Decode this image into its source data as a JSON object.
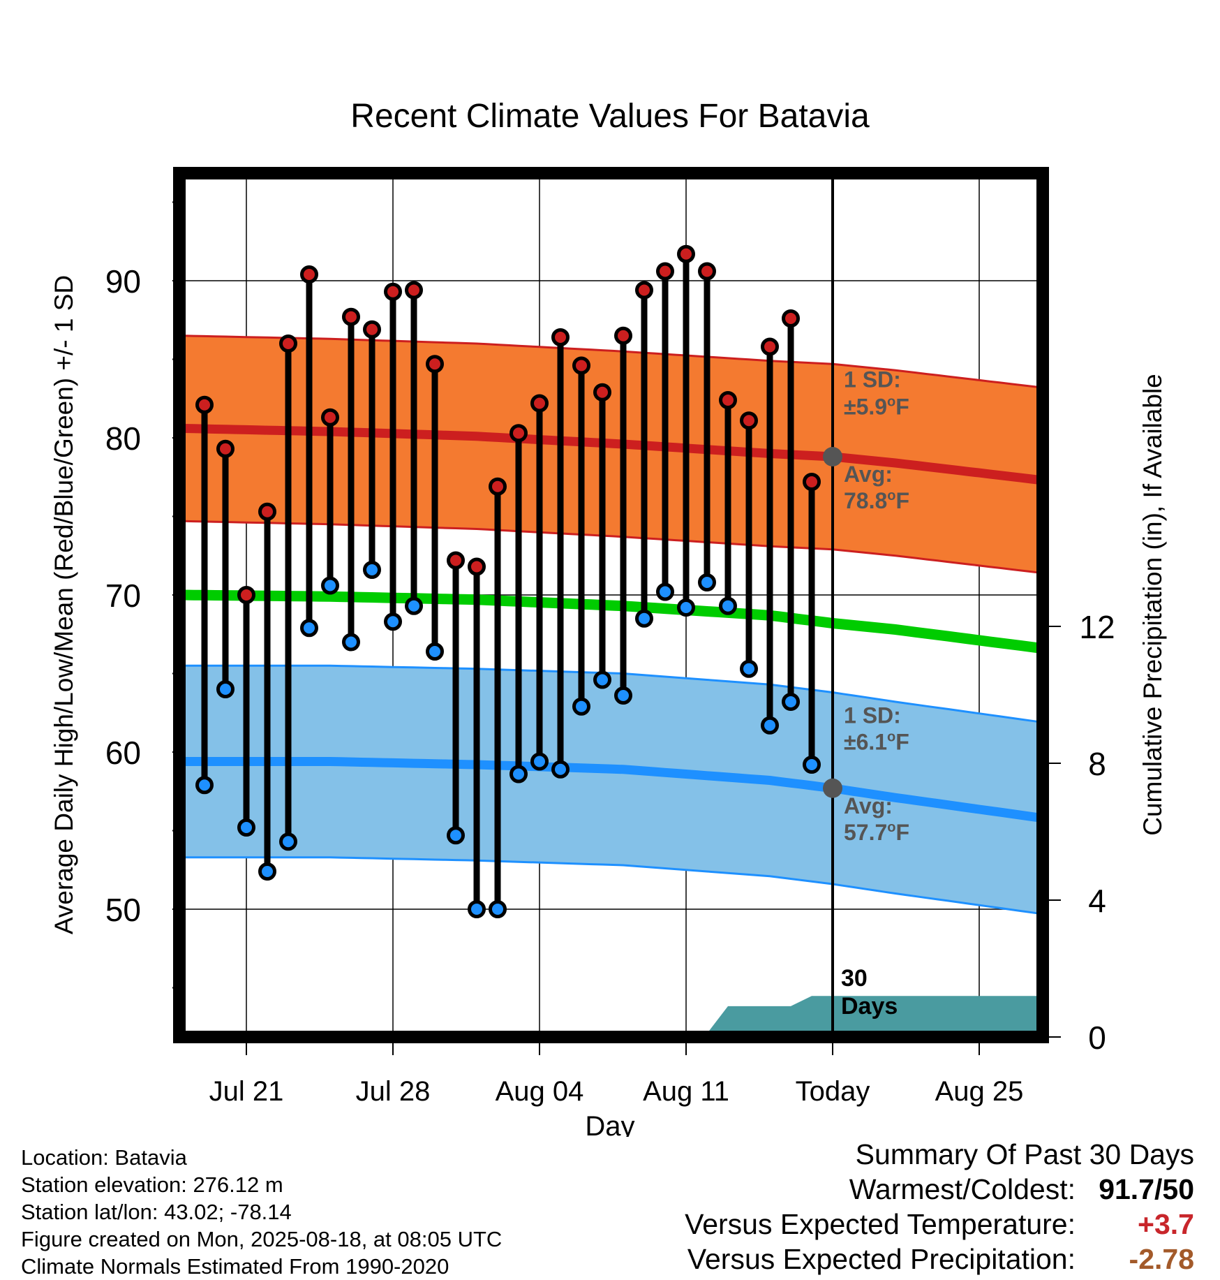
{
  "chart_data": {
    "type": "line",
    "title": "Recent Climate Values For Batavia",
    "xlabel": "Day",
    "ylabel": "Average Daily High/Low/Mean (Red/Blue/Green) +/- 1 SD",
    "y2label": "Cumulative Precipitation (in), If Available",
    "x_range_days": [
      -31,
      10
    ],
    "ylim": [
      42,
      97
    ],
    "y2lim": [
      0,
      20
    ],
    "x_ticks": [
      {
        "label": "Jul 21",
        "day": -28
      },
      {
        "label": "Jul 28",
        "day": -21
      },
      {
        "label": "Aug 04",
        "day": -14
      },
      {
        "label": "Aug 11",
        "day": -7
      },
      {
        "label": "Today",
        "day": 0
      },
      {
        "label": "Aug 25",
        "day": 7
      }
    ],
    "y_ticks": [
      50,
      60,
      70,
      80,
      90
    ],
    "y2_ticks": [
      0,
      4,
      8,
      12
    ],
    "grid": true,
    "today_line_label": [
      "30",
      "Days"
    ],
    "observed_days": [
      -30,
      -29,
      -28,
      -27,
      -26,
      -25,
      -24,
      -23,
      -22,
      -21,
      -20,
      -19,
      -18,
      -17,
      -16,
      -15,
      -14,
      -13,
      -12,
      -11,
      -10,
      -9,
      -8,
      -7,
      -6,
      -5,
      -4,
      -3,
      -2,
      -1
    ],
    "observed_high": [
      82.1,
      79.3,
      70.0,
      75.3,
      86.0,
      90.4,
      81.3,
      87.7,
      86.9,
      89.3,
      89.4,
      84.7,
      72.2,
      71.8,
      76.9,
      80.3,
      82.2,
      86.4,
      84.6,
      82.9,
      86.5,
      89.4,
      90.6,
      91.7,
      90.6,
      82.4,
      81.1,
      85.8,
      87.6,
      77.2
    ],
    "observed_low": [
      57.9,
      64.0,
      55.2,
      52.4,
      54.3,
      67.9,
      70.6,
      67.0,
      71.6,
      68.3,
      69.3,
      66.4,
      54.7,
      50.0,
      50.0,
      58.6,
      59.4,
      58.9,
      62.9,
      64.6,
      63.6,
      68.5,
      70.2,
      69.2,
      70.8,
      69.3,
      65.3,
      61.7,
      63.2,
      59.2
    ],
    "normals": {
      "days": [
        -31,
        -24,
        -17,
        -10,
        -3,
        0,
        3,
        10
      ],
      "high_avg": [
        80.6,
        80.4,
        80.1,
        79.6,
        79.0,
        78.8,
        78.4,
        77.3
      ],
      "high_sd": 5.9,
      "low_avg": [
        59.4,
        59.4,
        59.2,
        58.9,
        58.2,
        57.7,
        57.1,
        55.8
      ],
      "low_sd": 6.1,
      "mean_avg": [
        70.0,
        69.9,
        69.7,
        69.3,
        68.7,
        68.2,
        67.8,
        66.6
      ]
    },
    "precip_cumulative": {
      "days": [
        -31,
        -20.5,
        -17.5,
        -6,
        -5,
        -2,
        -1,
        10
      ],
      "values": [
        0,
        0,
        0.1,
        0.1,
        0.9,
        0.9,
        1.2,
        1.2
      ]
    },
    "annotations": {
      "high_sd_label": "1 SD:",
      "high_sd_value": "±5.9°F",
      "high_avg_label": "Avg:",
      "high_avg_value": "78.8°F",
      "low_sd_label": "1 SD:",
      "low_sd_value": "±6.1°F",
      "low_avg_label": "Avg:",
      "low_avg_value": "57.7°F"
    },
    "colors": {
      "high": "#cc1f1f",
      "high_band": "#f47a30",
      "low": "#1e90ff",
      "low_band": "#84c1e8",
      "mean": "#00cc00",
      "precip": "#4a9ba0",
      "marker_text": "#555555"
    }
  },
  "info": {
    "location": "Location: Batavia",
    "elevation": "Station elevation: 276.12 m",
    "latlon": "Station lat/lon: 43.02; -78.14",
    "created": "Figure created on Mon, 2025-08-18, at 08:05 UTC",
    "normals": "Climate Normals Estimated From 1990-2020"
  },
  "summary": {
    "title": "Summary Of Past 30 Days",
    "warm_cold_label": "Warmest/Coldest:",
    "warm_cold_value": "91.7/50",
    "temp_label": "Versus Expected Temperature:",
    "temp_value": "+3.7",
    "temp_color": "#c8262b",
    "precip_label": "Versus Expected Precipitation:",
    "precip_value": "-2.78",
    "precip_color": "#a35a2a"
  }
}
